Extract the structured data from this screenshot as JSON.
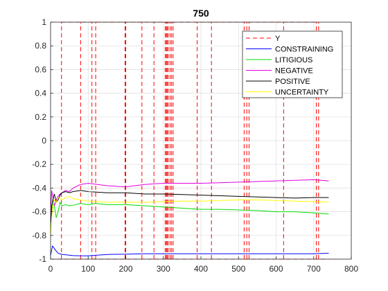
{
  "chart_data": {
    "type": "line",
    "title": "750",
    "xlabel": "",
    "ylabel": "",
    "xlim": [
      0,
      800
    ],
    "ylim": [
      -1,
      1
    ],
    "x_ticks": [
      0,
      100,
      200,
      300,
      400,
      500,
      600,
      700,
      800
    ],
    "y_ticks": [
      -1,
      -0.8,
      -0.6,
      -0.4,
      -0.2,
      0,
      0.2,
      0.4,
      0.6,
      0.8,
      1
    ],
    "x_tick_labels": [
      "0",
      "100",
      "200",
      "300",
      "400",
      "500",
      "600",
      "700",
      "800"
    ],
    "y_tick_labels": [
      "-1",
      "-0.8",
      "-0.6",
      "-0.4",
      "-0.2",
      "0",
      "0.2",
      "0.4",
      "0.6",
      "0.8",
      "1"
    ],
    "grid": true,
    "legend_position": "top-right",
    "series": [
      {
        "name": "Y",
        "kind": "indicator",
        "color": "#ff0000",
        "style": "dashed",
        "events_x": [
          29,
          80,
          110,
          120,
          198,
          200,
          243,
          275,
          305,
          308,
          310,
          313,
          318,
          322,
          326,
          390,
          428,
          515,
          522,
          528,
          620,
          707,
          713
        ]
      },
      {
        "name": "CONSTRAINING",
        "color": "#0000ff",
        "x": [
          0,
          3,
          5,
          8,
          12,
          20,
          30,
          45,
          60,
          80,
          100,
          130,
          160,
          200,
          250,
          300,
          350,
          400,
          450,
          500,
          550,
          600,
          650,
          700,
          740
        ],
        "values": [
          -0.97,
          -0.92,
          -0.89,
          -0.9,
          -0.92,
          -0.95,
          -0.96,
          -0.965,
          -0.97,
          -0.972,
          -0.972,
          -0.965,
          -0.96,
          -0.958,
          -0.955,
          -0.955,
          -0.955,
          -0.955,
          -0.955,
          -0.955,
          -0.955,
          -0.955,
          -0.955,
          -0.955,
          -0.95
        ]
      },
      {
        "name": "LITIGIOUS",
        "color": "#00dd00",
        "x": [
          0,
          3,
          6,
          10,
          15,
          20,
          25,
          30,
          40,
          50,
          60,
          80,
          100,
          120,
          150,
          200,
          250,
          300,
          350,
          400,
          450,
          500,
          550,
          600,
          650,
          700,
          740
        ],
        "values": [
          -0.75,
          -0.6,
          -0.5,
          -0.55,
          -0.65,
          -0.6,
          -0.52,
          -0.55,
          -0.54,
          -0.55,
          -0.545,
          -0.53,
          -0.54,
          -0.53,
          -0.54,
          -0.54,
          -0.55,
          -0.56,
          -0.57,
          -0.58,
          -0.58,
          -0.585,
          -0.59,
          -0.6,
          -0.6,
          -0.61,
          -0.62
        ]
      },
      {
        "name": "NEGATIVE",
        "color": "#e000e0",
        "x": [
          0,
          3,
          6,
          10,
          15,
          20,
          25,
          30,
          40,
          50,
          60,
          80,
          100,
          150,
          200,
          250,
          300,
          350,
          400,
          450,
          500,
          550,
          600,
          650,
          700,
          740
        ],
        "values": [
          -0.6,
          -0.42,
          -0.48,
          -0.55,
          -0.5,
          -0.47,
          -0.45,
          -0.44,
          -0.42,
          -0.43,
          -0.4,
          -0.37,
          -0.36,
          -0.38,
          -0.39,
          -0.37,
          -0.36,
          -0.36,
          -0.36,
          -0.355,
          -0.35,
          -0.345,
          -0.34,
          -0.335,
          -0.33,
          -0.34
        ]
      },
      {
        "name": "POSITIVE",
        "color": "#000000",
        "x": [
          0,
          3,
          6,
          10,
          15,
          20,
          25,
          30,
          40,
          50,
          60,
          80,
          100,
          150,
          200,
          250,
          300,
          350,
          400,
          450,
          500,
          550,
          600,
          650,
          700,
          740
        ],
        "values": [
          -0.72,
          -0.55,
          -0.5,
          -0.45,
          -0.52,
          -0.5,
          -0.46,
          -0.44,
          -0.43,
          -0.44,
          -0.43,
          -0.42,
          -0.43,
          -0.44,
          -0.44,
          -0.45,
          -0.45,
          -0.455,
          -0.46,
          -0.465,
          -0.47,
          -0.475,
          -0.48,
          -0.485,
          -0.48,
          -0.48
        ]
      },
      {
        "name": "UNCERTAINTY",
        "color": "#ffff00",
        "x": [
          0,
          3,
          6,
          10,
          15,
          20,
          25,
          30,
          40,
          50,
          60,
          80,
          100,
          150,
          200,
          250,
          300,
          350,
          400,
          450,
          500,
          550,
          600,
          650,
          700,
          740
        ],
        "values": [
          -0.8,
          -0.65,
          -0.55,
          -0.5,
          -0.52,
          -0.48,
          -0.49,
          -0.5,
          -0.48,
          -0.47,
          -0.49,
          -0.5,
          -0.51,
          -0.52,
          -0.52,
          -0.52,
          -0.515,
          -0.51,
          -0.51,
          -0.505,
          -0.5,
          -0.5,
          -0.505,
          -0.51,
          -0.515,
          -0.52
        ]
      }
    ]
  }
}
